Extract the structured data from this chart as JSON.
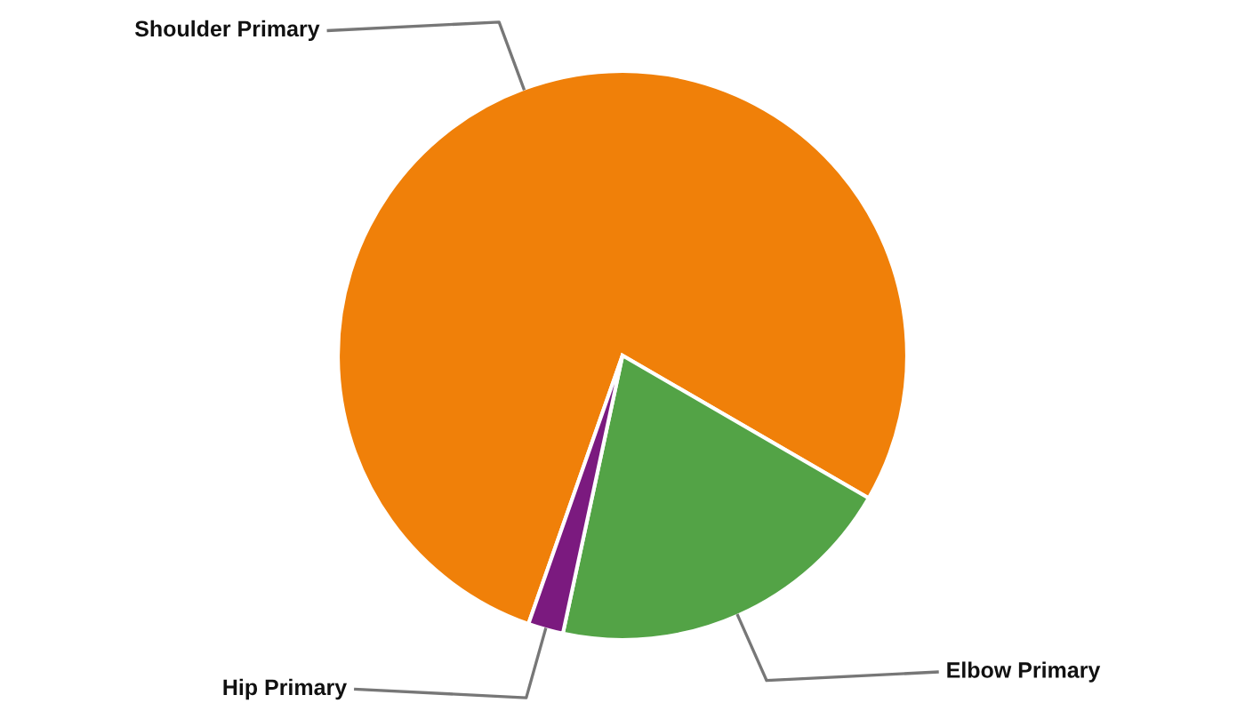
{
  "chart_data": {
    "type": "pie",
    "categories": [
      "Shoulder Primary",
      "Elbow Primary",
      "Hip Primary"
    ],
    "values": [
      78,
      20,
      2
    ],
    "colors": [
      "#f08009",
      "#53a346",
      "#7b1a7f"
    ],
    "legend": false
  }
}
